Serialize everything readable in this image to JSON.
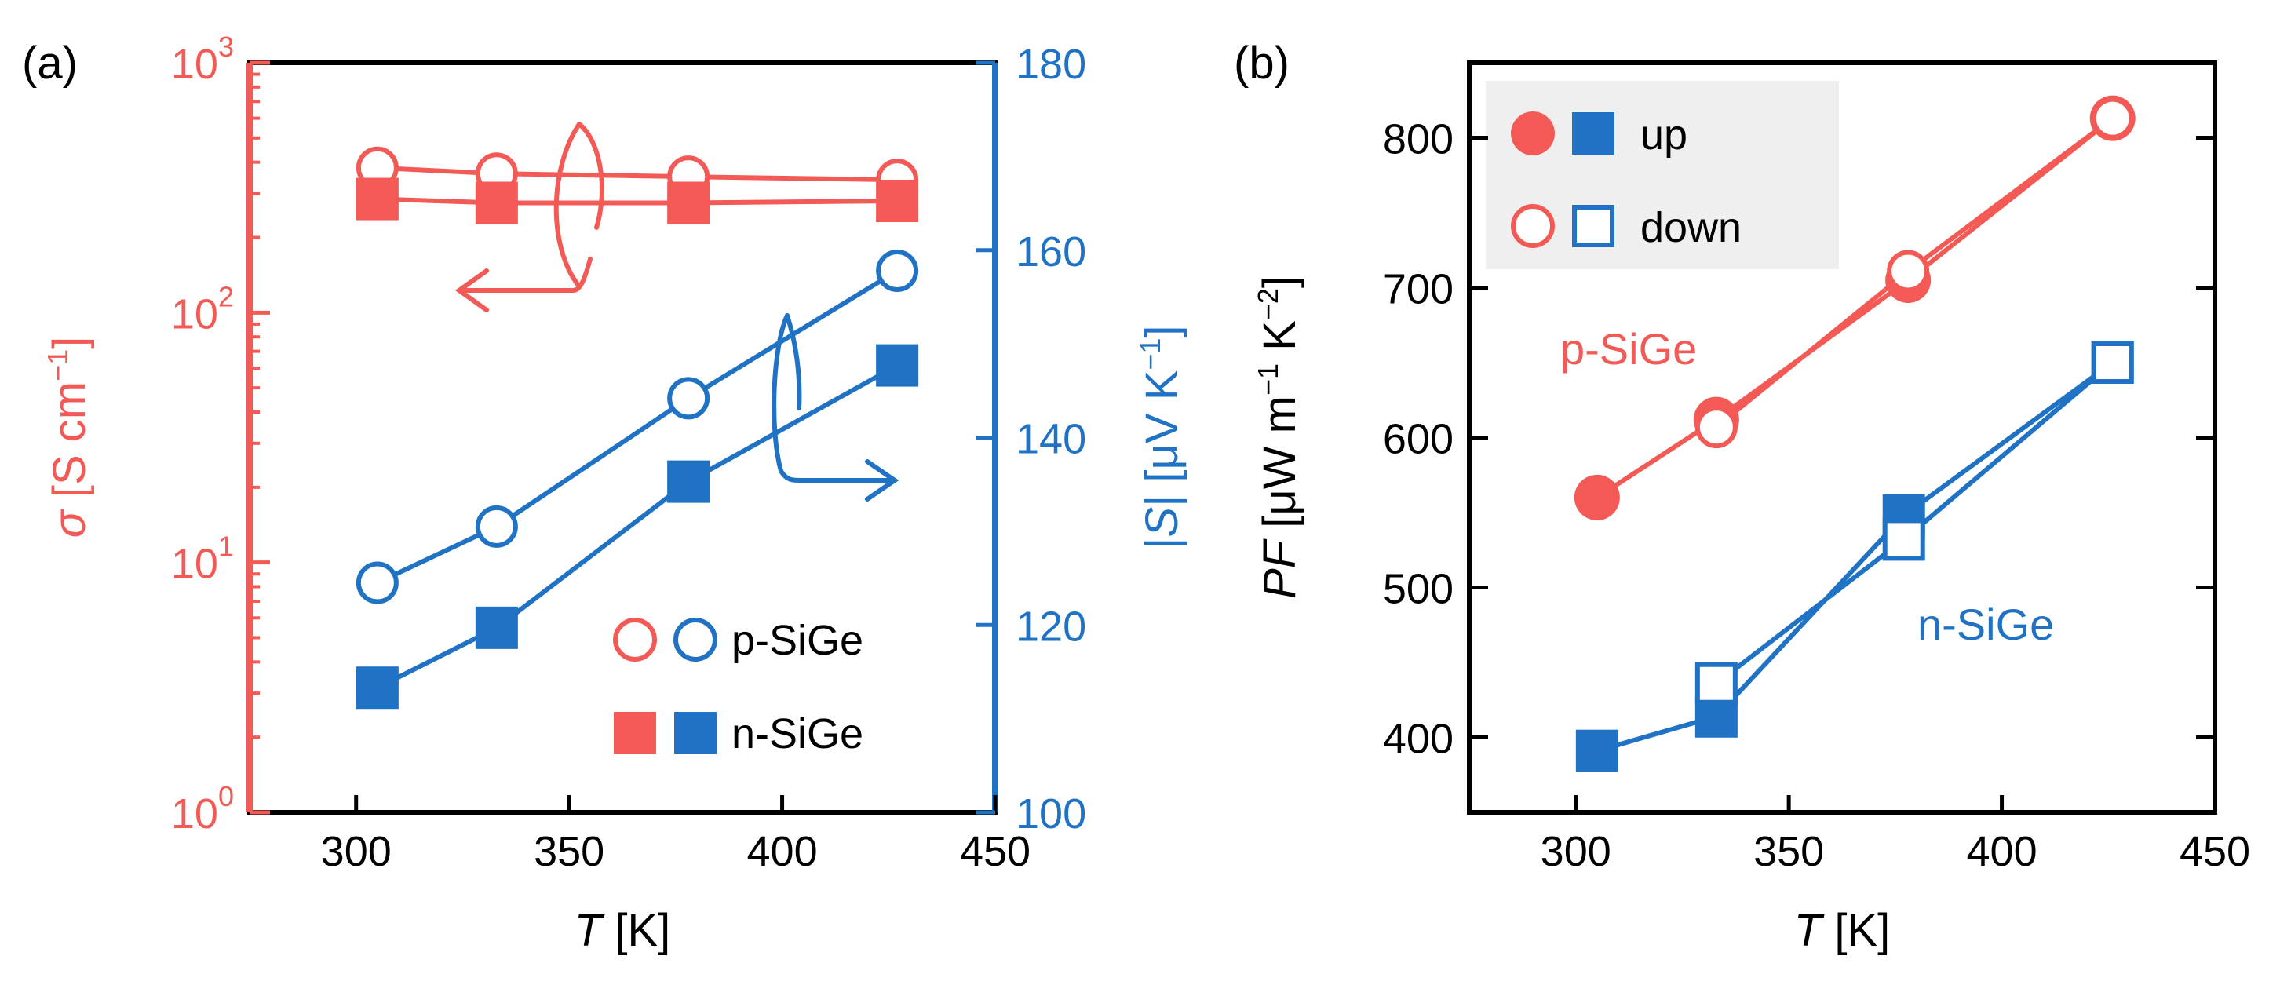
{
  "colors": {
    "red": "#F45A55",
    "blue": "#1F72C4",
    "black": "#000000",
    "legend_bg": "#EFEFEF"
  },
  "chart_data": [
    {
      "type": "line",
      "panel_label": "(a)",
      "xlabel": {
        "var": "T",
        "unit": " [K]"
      },
      "xlim": [
        275,
        450
      ],
      "xticks": [
        "300",
        "350",
        "400",
        "450"
      ],
      "ylabel_left": {
        "var": "σ",
        "unit": " [S cm",
        "sup": "−1",
        "end": "]"
      },
      "ylim_left": [
        1,
        1000
      ],
      "yscale_left": "log",
      "yticks_left": [
        {
          "base": "10",
          "exp": "0"
        },
        {
          "base": "10",
          "exp": "1"
        },
        {
          "base": "10",
          "exp": "2"
        },
        {
          "base": "10",
          "exp": "3"
        }
      ],
      "ylabel_right": {
        "pre": "|",
        "var": "S",
        "mid": "| [μV K",
        "sup": "−1",
        "end": "]"
      },
      "ylim_right": [
        100,
        180
      ],
      "yticks_right": [
        "100",
        "120",
        "140",
        "160",
        "180"
      ],
      "series": [
        {
          "name": "p-SiGe",
          "quantity": "σ",
          "axis": "left",
          "color": "red",
          "marker": "open-circle",
          "x": [
            305,
            333,
            378,
            427
          ],
          "values": [
            380,
            360,
            350,
            340
          ]
        },
        {
          "name": "n-SiGe",
          "quantity": "σ",
          "axis": "left",
          "color": "red",
          "marker": "filled-square",
          "x": [
            305,
            333,
            378,
            427
          ],
          "values": [
            285,
            275,
            275,
            280
          ]
        },
        {
          "name": "p-SiGe",
          "quantity": "|S|",
          "axis": "right",
          "color": "blue",
          "marker": "open-circle",
          "x": [
            305,
            333,
            378,
            427
          ],
          "values": [
            124.5,
            130.5,
            144.2,
            157.8
          ]
        },
        {
          "name": "n-SiGe",
          "quantity": "|S|",
          "axis": "right",
          "color": "blue",
          "marker": "filled-square",
          "x": [
            305,
            333,
            378,
            427
          ],
          "values": [
            113.3,
            119.7,
            135.3,
            147.7
          ]
        }
      ],
      "legend": [
        {
          "label": "p-SiGe",
          "markers": [
            "open-circle-red",
            "open-circle-blue"
          ]
        },
        {
          "label": "n-SiGe",
          "markers": [
            "filled-square-red",
            "filled-square-blue"
          ]
        }
      ],
      "legend_position": "bottom-right",
      "annotations": [
        "left-arrow (σ → left axis)",
        "right-arrow (|S| → right axis)"
      ]
    },
    {
      "type": "line",
      "panel_label": "(b)",
      "xlabel": {
        "var": "T",
        "unit": " [K]"
      },
      "xlim": [
        275,
        450
      ],
      "xticks": [
        "300",
        "350",
        "400",
        "450"
      ],
      "ylabel": {
        "var": "PF",
        "unit": " [μW m",
        "sup1": "−1",
        "mid": " K",
        "sup2": "−2",
        "end": "]"
      },
      "ylim": [
        350,
        850
      ],
      "yticks": [
        "400",
        "500",
        "600",
        "700",
        "800"
      ],
      "series": [
        {
          "name": "p-SiGe up",
          "color": "red",
          "marker": "filled-circle",
          "x": [
            305,
            333,
            378,
            426
          ],
          "values": [
            560,
            612,
            705,
            813
          ]
        },
        {
          "name": "p-SiGe down",
          "color": "red",
          "marker": "open-circle",
          "x": [
            333,
            378,
            426
          ],
          "values": [
            607,
            711,
            813
          ]
        },
        {
          "name": "n-SiGe up",
          "color": "blue",
          "marker": "filled-square",
          "x": [
            305,
            333,
            377,
            426
          ],
          "values": [
            391,
            414,
            548,
            650
          ]
        },
        {
          "name": "n-SiGe down",
          "color": "blue",
          "marker": "open-square",
          "x": [
            333,
            377,
            426
          ],
          "values": [
            436,
            532,
            650
          ]
        }
      ],
      "series_labels": [
        "p-SiGe",
        "n-SiGe"
      ],
      "legend": [
        {
          "label": "up",
          "markers": [
            "filled-circle-red",
            "filled-square-blue"
          ]
        },
        {
          "label": "down",
          "markers": [
            "open-circle-red",
            "open-square-blue"
          ]
        }
      ],
      "legend_position": "top-left"
    }
  ]
}
